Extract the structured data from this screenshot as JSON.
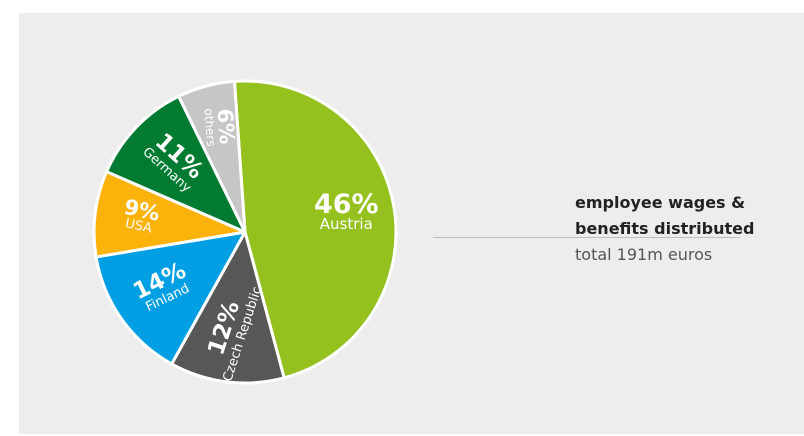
{
  "colors": {
    "panel": "#ededed",
    "Austria": "#95c11f",
    "Czech Republic": "#575756",
    "Finland": "#009fe3",
    "USA": "#fbb20b",
    "Germany": "#007b31",
    "others": "#c6c6c6"
  },
  "chart_data": {
    "type": "pie",
    "title": "employee wages & benefits distributed",
    "subtitle": "total 191m euros",
    "legend": "none",
    "slices": [
      {
        "label": "Austria",
        "value": 46,
        "display": "46%"
      },
      {
        "label": "Czech Republic",
        "value": 12,
        "display": "12%"
      },
      {
        "label": "Finland",
        "value": 14,
        "display": "14%"
      },
      {
        "label": "USA",
        "value": 9,
        "display": "9%"
      },
      {
        "label": "Germany",
        "value": 11,
        "display": "11%"
      },
      {
        "label": "others",
        "value": 6,
        "display": "6%"
      }
    ]
  },
  "caption": {
    "title_line1": "employee wages &",
    "title_line2": "benefits distributed",
    "subtitle": "total 191m euros"
  }
}
